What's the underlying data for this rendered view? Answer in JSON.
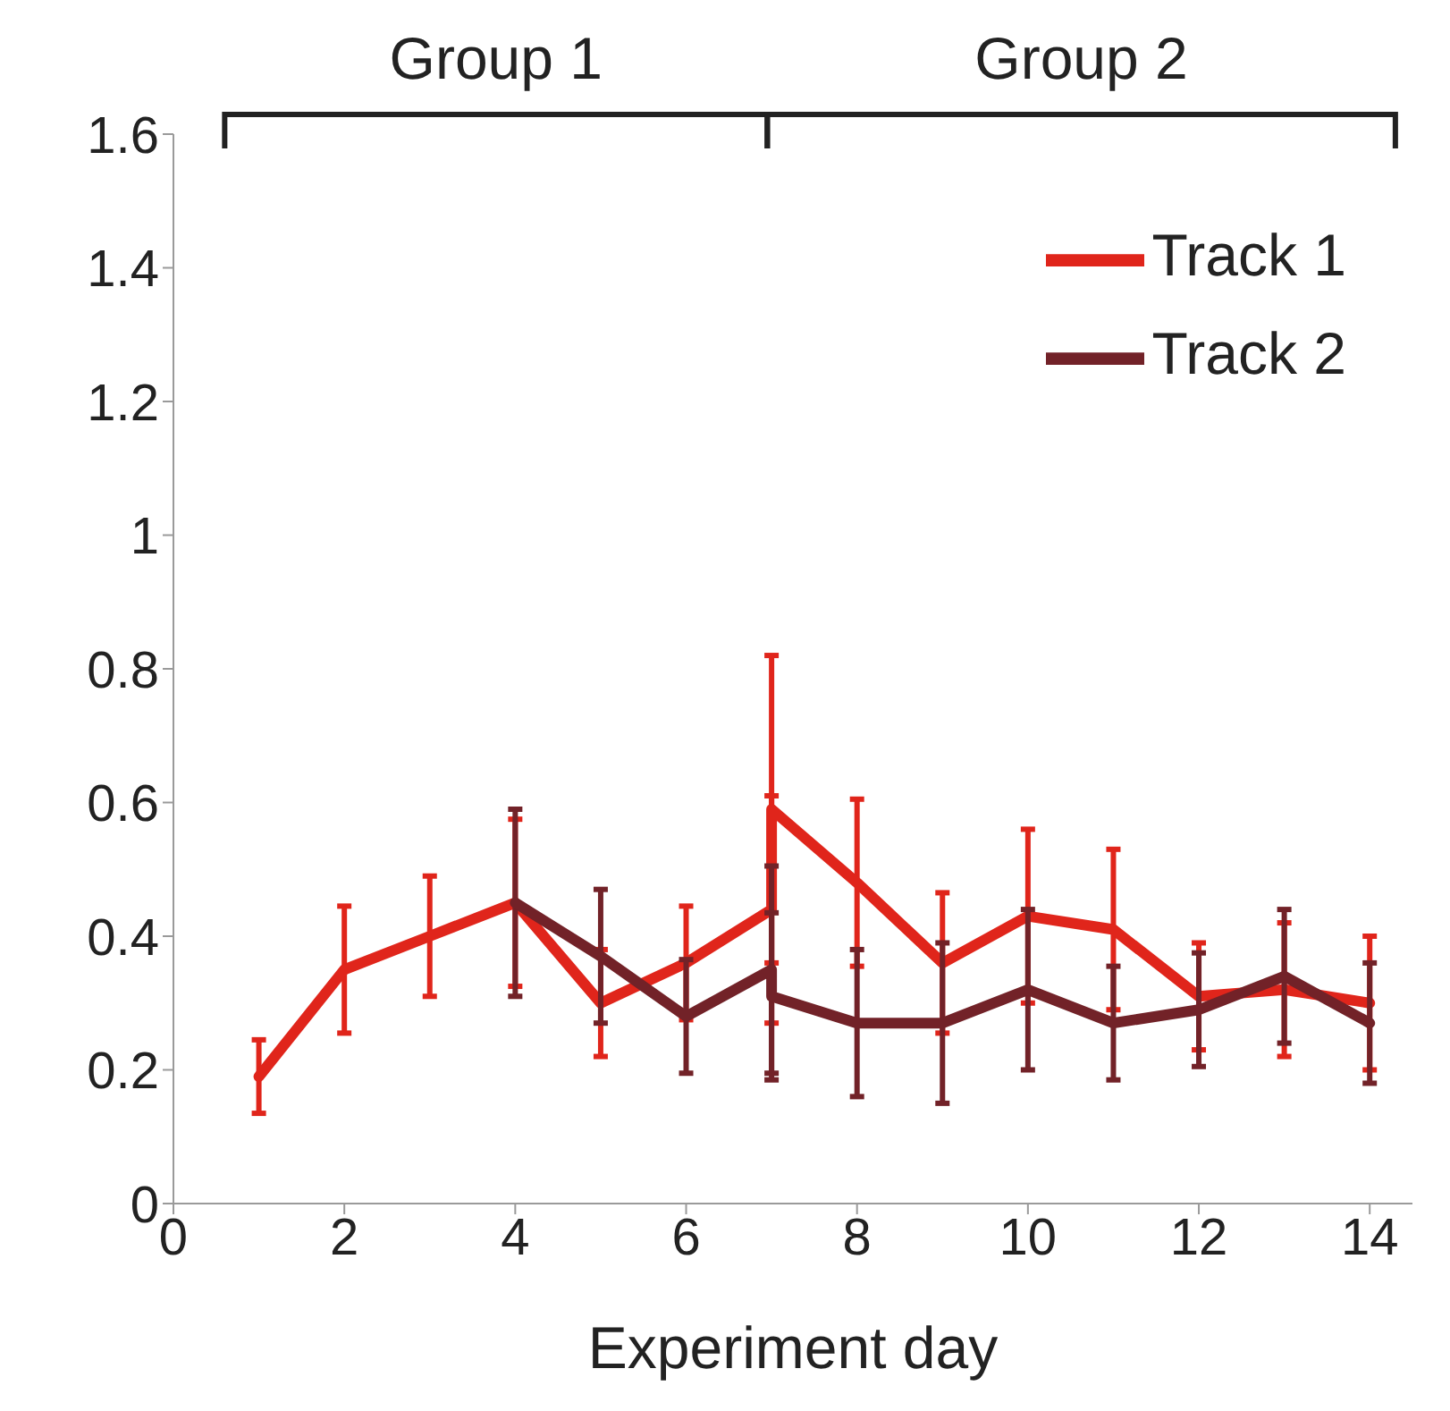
{
  "chart_data": {
    "type": "line",
    "xlabel": "Experiment day",
    "annotations": [
      "Group 1",
      "Group 2"
    ],
    "series": [
      {
        "name": "Track 1",
        "color": "#e0251b",
        "x": [
          1,
          2,
          3,
          4,
          5,
          6,
          7,
          7,
          8,
          9,
          10,
          11,
          12,
          13,
          14
        ],
        "values": [
          0.19,
          0.35,
          0.4,
          0.45,
          0.3,
          0.36,
          0.44,
          0.59,
          0.48,
          0.36,
          0.43,
          0.41,
          0.31,
          0.32,
          0.3
        ],
        "errors": [
          0.055,
          0.095,
          0.09,
          0.125,
          0.08,
          0.085,
          0.17,
          0.23,
          0.125,
          0.105,
          0.13,
          0.12,
          0.08,
          0.1,
          0.1
        ]
      },
      {
        "name": "Track 2",
        "color": "#722228",
        "x": [
          4,
          5,
          6,
          7,
          7,
          8,
          9,
          10,
          11,
          12,
          13,
          14
        ],
        "values": [
          0.45,
          0.37,
          0.28,
          0.35,
          0.31,
          0.27,
          0.27,
          0.32,
          0.27,
          0.29,
          0.34,
          0.27
        ],
        "errors": [
          0.14,
          0.1,
          0.085,
          0.155,
          0.125,
          0.11,
          0.12,
          0.12,
          0.085,
          0.085,
          0.1,
          0.09
        ]
      }
    ],
    "xlim": [
      0,
      14.5
    ],
    "xticks": [
      0,
      2,
      4,
      6,
      8,
      10,
      12,
      14
    ],
    "ylim": [
      0,
      1.6
    ],
    "yticks": [
      0,
      0.2,
      0.4,
      0.6,
      0.8,
      1,
      1.2,
      1.4,
      1.6
    ],
    "grid": false,
    "legend": "top right",
    "marker": "none",
    "line_style": "solid"
  }
}
